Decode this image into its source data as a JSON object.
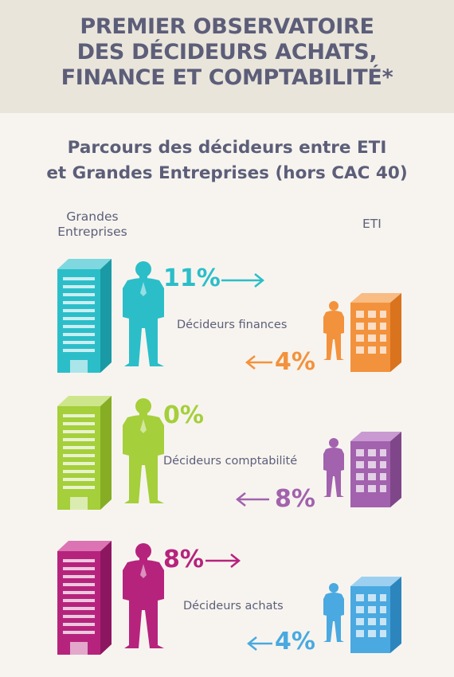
{
  "header": {
    "title_lines": [
      "PREMIER OBSERVATOIRE",
      "DES DÉCIDEURS ACHATS,",
      "FINANCE ET COMPTABILITÉ*"
    ]
  },
  "subtitle_lines": [
    "Parcours des décideurs entre ETI",
    "et Grandes Entreprises (hors CAC 40)"
  ],
  "columns": {
    "left_lines": [
      "Grandes",
      "Entreprises"
    ],
    "right": "ETI"
  },
  "rows": [
    {
      "label": "Décideurs finances",
      "to_eti": "11%",
      "to_ge": "4%",
      "ge_color": "#2bbec9",
      "eti_color": "#f3923c"
    },
    {
      "label": "Décideurs comptabilité",
      "to_eti": "0%",
      "to_ge": "8%",
      "ge_color": "#a5cf3b",
      "eti_color": "#a262ad"
    },
    {
      "label": "Décideurs achats",
      "to_eti": "8%",
      "to_ge": "4%",
      "ge_color": "#b6237d",
      "eti_color": "#4aa9e0"
    }
  ]
}
